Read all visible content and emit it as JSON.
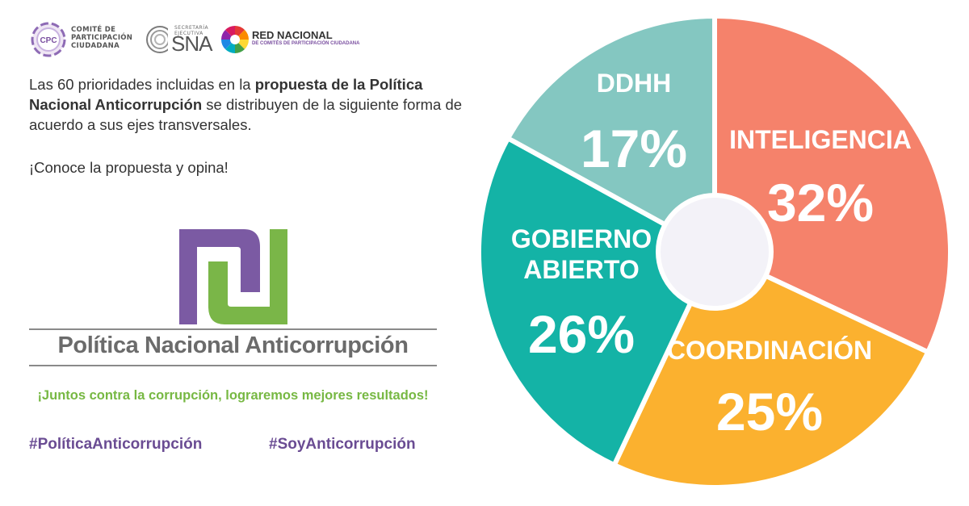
{
  "logos": {
    "cpc": {
      "mark": "CPC",
      "text": "COMITÉ DE PARTICIPACIÓN CIUDADANA"
    },
    "sna": {
      "small": "SECRETARÍA EJECUTIVA",
      "big": "SNA"
    },
    "red": {
      "title": "RED NACIONAL",
      "subtitle": "DE COMITÉS DE PARTICIPACIÓN CIUDADANA"
    }
  },
  "intro": {
    "part1": "Las 60 prioridades  incluidas en la ",
    "bold": "propuesta de la Política Nacional Anticorrupción",
    "part2": " se distribuyen de la siguiente forma de acuerdo a sus ejes transversales."
  },
  "cta": "¡Conoce  la propuesta y opina!",
  "policy_title": "Política Nacional Anticorrupción",
  "slogan": "¡Juntos contra la corrupción, lograremos mejores resultados!",
  "hashtags": [
    "#PolíticaAnticorrupción",
    "#SoyAnticorrupción"
  ],
  "colors": {
    "purple": "#6a4c93",
    "green": "#77b843",
    "gray": "#6b6b6b"
  },
  "chart_data": {
    "type": "pie",
    "slices": [
      {
        "label": "INTELIGENCIA",
        "value": 32,
        "display": "32%",
        "color": "#f5826b"
      },
      {
        "label": "COORDINACIÓN",
        "value": 25,
        "display": "25%",
        "color": "#fbb12f"
      },
      {
        "label": "GOBIERNO ABIERTO",
        "value": 26,
        "display": "26%",
        "color": "#14b3a6"
      },
      {
        "label": "DDHH",
        "value": 17,
        "display": "17%",
        "color": "#84c7c1"
      }
    ]
  }
}
